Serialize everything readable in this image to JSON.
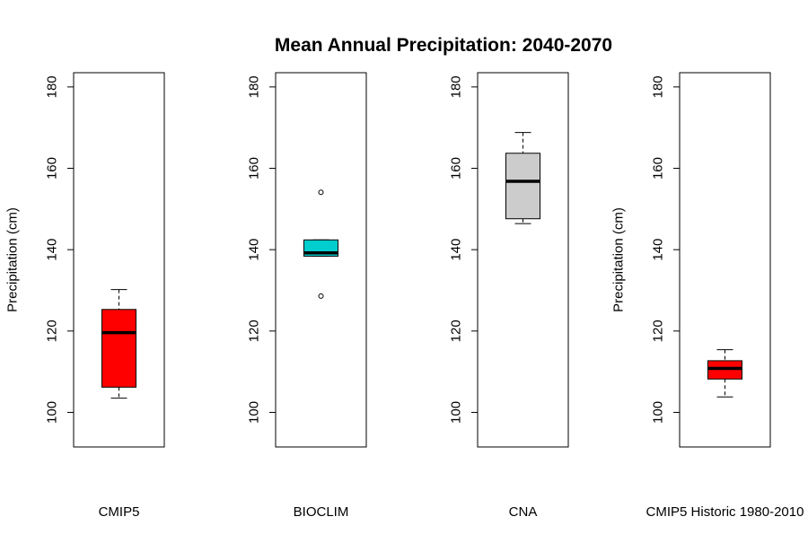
{
  "chart_data": {
    "type": "boxplot",
    "title": "Mean Annual Precipitation: 2040-2070",
    "ylim": [
      91.5,
      183.5
    ],
    "yticks": [
      100,
      120,
      140,
      160,
      180
    ],
    "grid": false,
    "legend": "none",
    "panels": [
      {
        "category": "CMIP5",
        "ylabel": "Precipitation (cm)",
        "color": "#ff0000",
        "whisker_low": 103.5,
        "q1": 106.2,
        "median": 119.6,
        "q3": 125.3,
        "whisker_high": 130.2,
        "outliers": []
      },
      {
        "category": "BIOCLIM",
        "ylabel": "",
        "color": "#00cdcd",
        "whisker_low": 138.4,
        "q1": 138.4,
        "median": 139.2,
        "q3": 142.4,
        "whisker_high": 142.4,
        "outliers": [
          154.1,
          128.6
        ]
      },
      {
        "category": "CNA",
        "ylabel": "",
        "color": "#cccccc",
        "whisker_low": 146.4,
        "q1": 147.6,
        "median": 156.8,
        "q3": 163.7,
        "whisker_high": 168.8,
        "outliers": []
      },
      {
        "category": "CMIP5 Historic 1980-2010",
        "ylabel": "Precipitation (cm)",
        "color": "#ff0000",
        "whisker_low": 103.8,
        "q1": 108.2,
        "median": 110.8,
        "q3": 112.7,
        "whisker_high": 115.4,
        "outliers": []
      }
    ]
  }
}
